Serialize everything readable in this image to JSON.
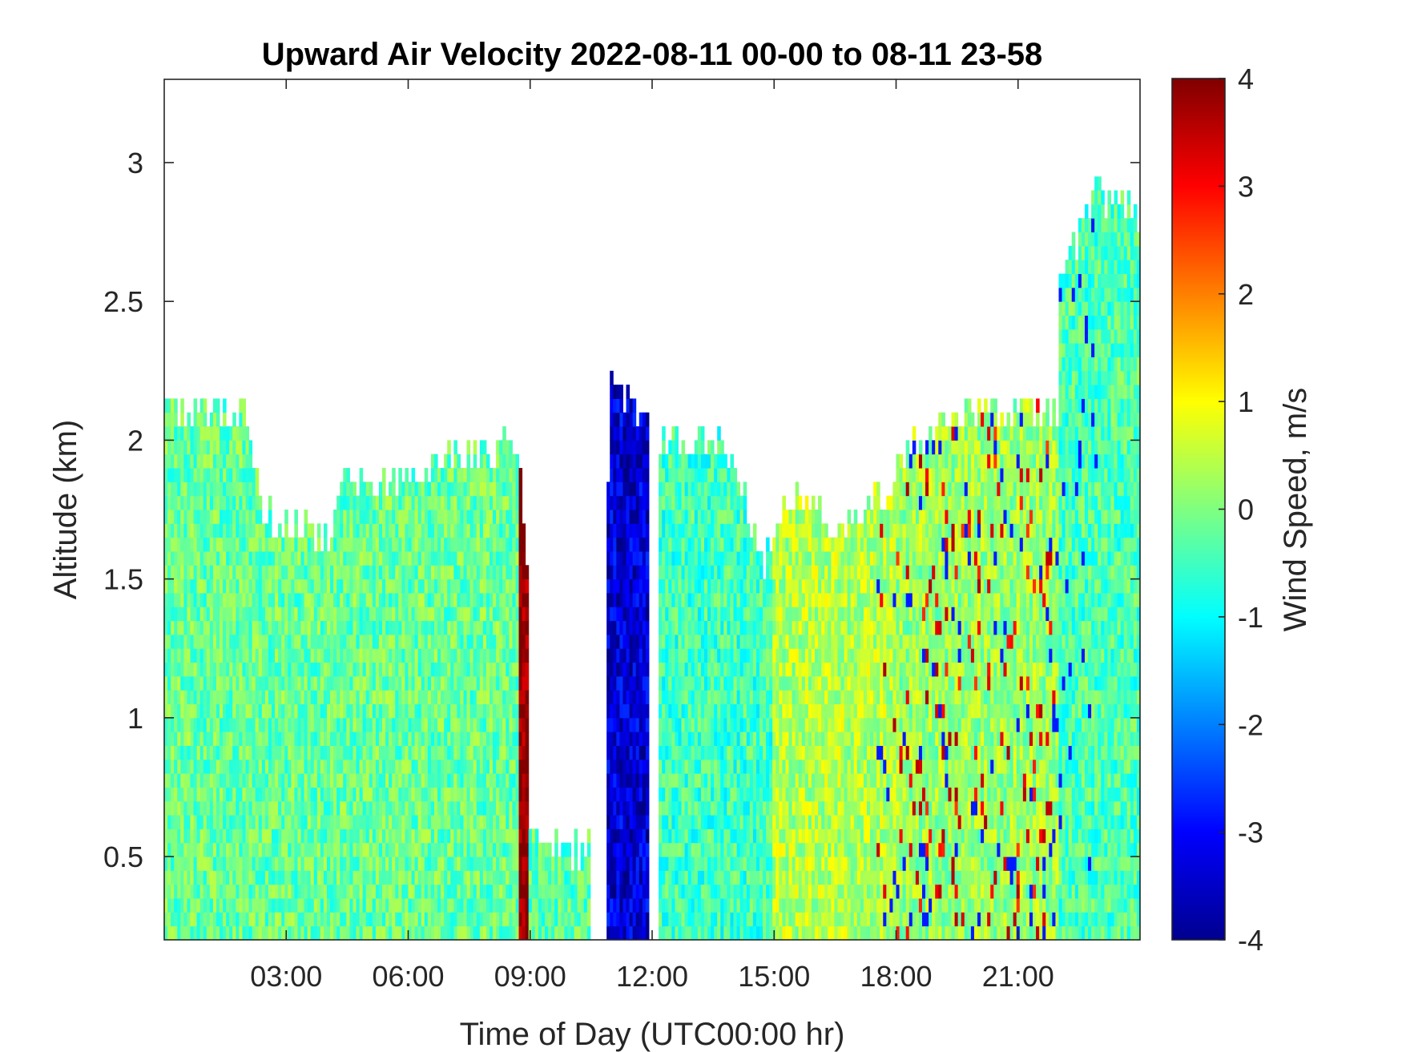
{
  "title": "Upward Air Velocity 2022-08-11 00-00 to 08-11 23-58",
  "chart_data": {
    "type": "heatmap",
    "title": "Upward Air Velocity 2022-08-11 00-00 to 08-11 23-58",
    "xlabel": "Time of Day (UTC00:00 hr)",
    "ylabel": "Altitude (km)",
    "colorbar_label": "Wind Speed, m/s",
    "colormap": "jet",
    "xlim_hours": [
      0,
      24
    ],
    "ylim": [
      0.2,
      3.3
    ],
    "clim": [
      -4,
      4
    ],
    "x_ticks": [
      {
        "value": 3,
        "label": "03:00"
      },
      {
        "value": 6,
        "label": "06:00"
      },
      {
        "value": 9,
        "label": "09:00"
      },
      {
        "value": 12,
        "label": "12:00"
      },
      {
        "value": 15,
        "label": "15:00"
      },
      {
        "value": 18,
        "label": "18:00"
      },
      {
        "value": 21,
        "label": "21:00"
      }
    ],
    "y_ticks": [
      {
        "value": 0.5,
        "label": "0.5"
      },
      {
        "value": 1,
        "label": "1"
      },
      {
        "value": 1.5,
        "label": "1.5"
      },
      {
        "value": 2,
        "label": "2"
      },
      {
        "value": 2.5,
        "label": "2.5"
      },
      {
        "value": 3,
        "label": "3"
      }
    ],
    "colorbar_ticks": [
      {
        "value": -4,
        "label": "-4"
      },
      {
        "value": -3,
        "label": "-3"
      },
      {
        "value": -2,
        "label": "-2"
      },
      {
        "value": -1,
        "label": "-1"
      },
      {
        "value": 0,
        "label": "0"
      },
      {
        "value": 1,
        "label": "1"
      },
      {
        "value": 2,
        "label": "2"
      },
      {
        "value": 3,
        "label": "3"
      },
      {
        "value": 4,
        "label": "4"
      }
    ],
    "data_top_profile": {
      "time_hours": [
        0,
        1,
        2,
        2.5,
        3,
        4,
        4.5,
        5,
        6,
        7,
        8,
        8.7,
        9.5,
        10.5,
        11,
        12,
        13,
        14,
        14.7,
        15.5,
        16,
        16.5,
        17,
        18,
        19,
        20,
        21,
        22,
        23,
        24
      ],
      "top_altitude_km": [
        2.15,
        2.1,
        2.1,
        1.75,
        1.7,
        1.65,
        1.85,
        1.82,
        1.87,
        1.95,
        1.95,
        2.0,
        0.55,
        0.52,
        2.2,
        2.1,
        2.0,
        1.95,
        1.55,
        1.85,
        1.75,
        1.7,
        1.7,
        1.9,
        2.05,
        2.1,
        2.3,
        2.6,
        2.9,
        2.8
      ]
    },
    "wind_speed_regions": [
      {
        "time_start": 0,
        "time_end": 8.7,
        "altitude_range": [
          0.2,
          2.15
        ],
        "typical_value": -0.2
      },
      {
        "time_start": 8.7,
        "time_end": 9.0,
        "altitude_range": [
          0.2,
          1.95
        ],
        "typical_value": 4
      },
      {
        "time_start": 9.0,
        "time_end": 10.5,
        "altitude_range": [
          0.2,
          0.55
        ],
        "typical_value": -0.3
      },
      {
        "time_start": 10.9,
        "time_end": 11.9,
        "altitude_range": [
          0.2,
          2.2
        ],
        "typical_value": -3.3
      },
      {
        "time_start": 12.2,
        "time_end": 15.0,
        "altitude_range": [
          0.2,
          2.0
        ],
        "typical_value": -0.5
      },
      {
        "time_start": 15.0,
        "time_end": 18.0,
        "altitude_range": [
          0.2,
          1.8
        ],
        "typical_value": 0.4
      },
      {
        "time_start": 18.0,
        "time_end": 22.0,
        "altitude_range": [
          0.2,
          2.1
        ],
        "typical_value": 0.2
      },
      {
        "time_start": 22.0,
        "time_end": 24.0,
        "altitude_range": [
          0.2,
          2.9
        ],
        "typical_value": -0.4
      }
    ]
  }
}
